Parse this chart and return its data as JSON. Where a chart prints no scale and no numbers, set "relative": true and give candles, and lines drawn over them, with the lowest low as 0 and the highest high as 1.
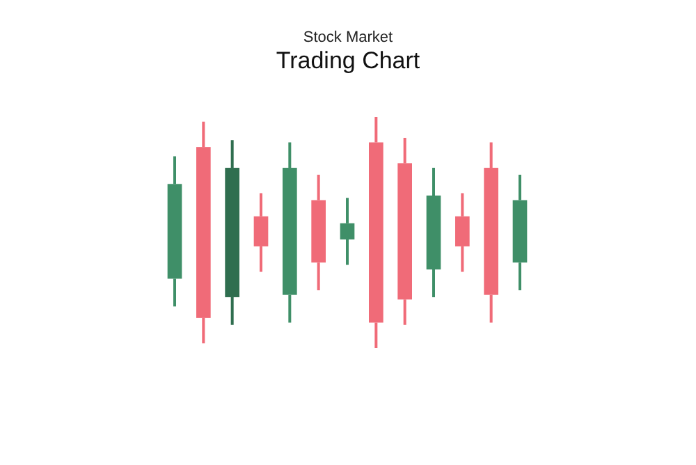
{
  "chart_data": {
    "type": "candlestick",
    "title": "Trading Chart",
    "subtitle": "Stock Market",
    "relative": true,
    "categories": [
      null,
      null,
      null,
      null,
      null,
      null,
      null,
      null,
      null,
      null,
      null,
      null,
      null
    ],
    "ohlc": [
      [
        0.3,
        0.83,
        0.18,
        0.71
      ],
      [
        0.87,
        0.98,
        0.02,
        0.13
      ],
      [
        0.22,
        0.9,
        0.1,
        0.78
      ],
      [
        0.57,
        0.67,
        0.33,
        0.44
      ],
      [
        0.23,
        0.89,
        0.11,
        0.78
      ],
      [
        0.64,
        0.75,
        0.25,
        0.37
      ],
      [
        0.47,
        0.65,
        0.36,
        0.54
      ],
      [
        0.89,
        1,
        0,
        0.11
      ],
      [
        0.8,
        0.91,
        0.1,
        0.21
      ],
      [
        0.34,
        0.78,
        0.22,
        0.66
      ],
      [
        0.57,
        0.67,
        0.33,
        0.44
      ],
      [
        0.78,
        0.89,
        0.11,
        0.23
      ],
      [
        0.37,
        0.75,
        0.25,
        0.64
      ]
    ],
    "colors": [
      "#3f8f68",
      "#f06b78",
      "#2f6e4f",
      "#f06b78",
      "#3f8f68",
      "#f06b78",
      "#3f8f68",
      "#f06b78",
      "#f06b78",
      "#3f8f68",
      "#f06b78",
      "#f06b78",
      "#3f8f68"
    ]
  }
}
